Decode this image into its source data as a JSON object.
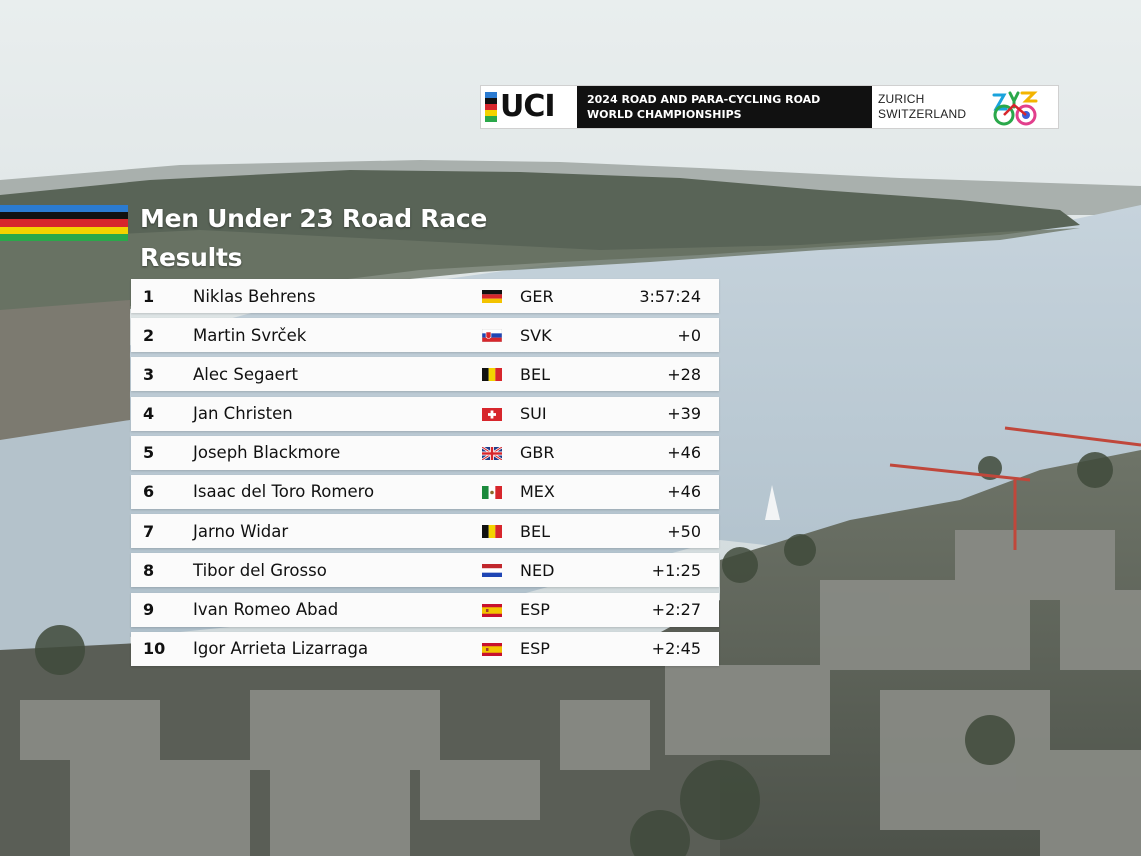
{
  "banner": {
    "logo_text": "UCI",
    "title_line1": "2024 ROAD AND PARA-CYCLING ROAD",
    "title_line2": "WORLD CHAMPIONSHIPS",
    "location_line1": "ZURICH",
    "location_line2": "SWITZERLAND",
    "emblem_icon": "zurich-2024-emblem-icon"
  },
  "heading": {
    "title": "Men Under 23 Road Race",
    "subtitle": "Results",
    "stripe_colors": [
      "#2b7bd1",
      "#111111",
      "#d7262c",
      "#f3d300",
      "#2aa84a"
    ]
  },
  "results": [
    {
      "rank": "1",
      "name": "Niklas Behrens",
      "flag_icon": "germany-flag-icon",
      "country": "GER",
      "time": "3:57:24"
    },
    {
      "rank": "2",
      "name": "Martin Svrček",
      "flag_icon": "slovakia-flag-icon",
      "country": "SVK",
      "time": "+0"
    },
    {
      "rank": "3",
      "name": "Alec Segaert",
      "flag_icon": "belgium-flag-icon",
      "country": "BEL",
      "time": "+28"
    },
    {
      "rank": "4",
      "name": "Jan Christen",
      "flag_icon": "switzerland-flag-icon",
      "country": "SUI",
      "time": "+39"
    },
    {
      "rank": "5",
      "name": "Joseph Blackmore",
      "flag_icon": "great-britain-flag-icon",
      "country": "GBR",
      "time": "+46"
    },
    {
      "rank": "6",
      "name": "Isaac del Toro Romero",
      "flag_icon": "mexico-flag-icon",
      "country": "MEX",
      "time": "+46"
    },
    {
      "rank": "7",
      "name": "Jarno Widar",
      "flag_icon": "belgium-flag-icon",
      "country": "BEL",
      "time": "+50"
    },
    {
      "rank": "8",
      "name": "Tibor del Grosso",
      "flag_icon": "netherlands-flag-icon",
      "country": "NED",
      "time": "+1:25"
    },
    {
      "rank": "9",
      "name": "Ivan Romeo Abad",
      "flag_icon": "spain-flag-icon",
      "country": "ESP",
      "time": "+2:27"
    },
    {
      "rank": "10",
      "name": "Igor Arrieta Lizarraga",
      "flag_icon": "spain-flag-icon",
      "country": "ESP",
      "time": "+2:45"
    }
  ]
}
